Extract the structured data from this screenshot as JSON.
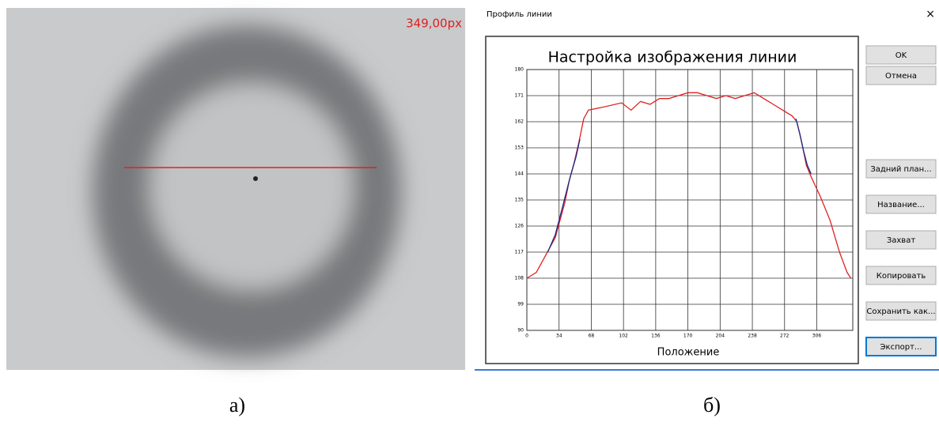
{
  "image_panel": {
    "measurement": "349,00px",
    "caption": "а)"
  },
  "dialog": {
    "title": "Профиль линии",
    "close": "×",
    "caption": "б)",
    "buttons": [
      "OK",
      "Отмена",
      "Задний план...",
      "Название...",
      "Захват",
      "Копировать",
      "Сохранить как...",
      "Экспорт..."
    ]
  },
  "chart_data": {
    "type": "line",
    "title": "Настройка изображения линии",
    "x_label": "Положение",
    "xlim": [
      0,
      344
    ],
    "xticks": [
      0,
      34,
      68,
      102,
      136,
      170,
      204,
      238,
      272,
      306
    ],
    "ylim": [
      90,
      180
    ],
    "yticks": [
      90,
      99,
      108,
      117,
      126,
      135,
      144,
      153,
      162,
      171,
      180
    ],
    "grid": true,
    "series": [
      {
        "color": "#e02020",
        "x": [
          0,
          10,
          20,
          30,
          40,
          45,
          50,
          55,
          60,
          65,
          80,
          100,
          110,
          120,
          130,
          140,
          150,
          160,
          170,
          180,
          190,
          200,
          210,
          220,
          230,
          240,
          250,
          260,
          270,
          280,
          285,
          290,
          295,
          300,
          310,
          320,
          330,
          338,
          342
        ],
        "values": [
          108,
          110,
          116,
          122,
          134,
          142,
          148,
          155,
          163,
          166,
          167,
          168.5,
          166,
          169,
          168,
          170,
          170,
          171,
          172,
          172,
          171,
          170,
          171,
          170,
          171,
          172,
          170,
          168,
          166,
          164,
          162,
          155,
          147,
          143,
          136,
          128,
          117,
          110,
          108
        ]
      },
      {
        "color": "#1a2a8a",
        "x": [
          22,
          30,
          38,
          45,
          52,
          56
        ],
        "values": [
          117,
          123,
          133,
          142,
          150,
          156
        ]
      },
      {
        "color": "#1a2a8a",
        "x": [
          284,
          288,
          292,
          296,
          300
        ],
        "values": [
          163,
          158,
          152,
          147,
          144
        ]
      }
    ]
  }
}
